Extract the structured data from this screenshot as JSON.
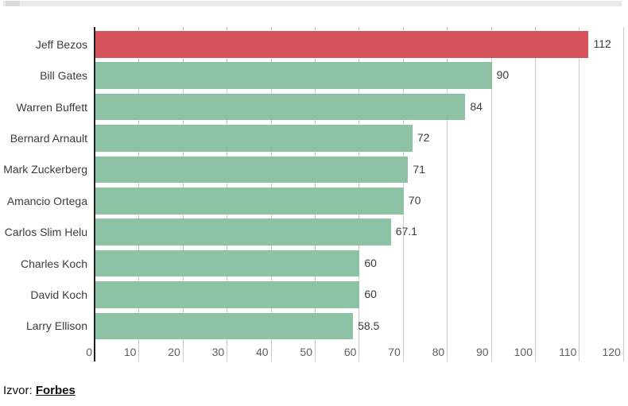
{
  "chart_data": {
    "type": "bar",
    "orientation": "horizontal",
    "title": "",
    "categories": [
      "Jeff Bezos",
      "Bill Gates",
      "Warren Buffett",
      "Bernard Arnault",
      "Mark Zuckerberg",
      "Amancio Ortega",
      "Carlos Slim Helu",
      "Charles Koch",
      "David Koch",
      "Larry Ellison"
    ],
    "values": [
      112,
      90,
      84,
      72,
      71,
      70,
      67.1,
      60,
      60,
      58.5
    ],
    "value_labels": [
      "112",
      "90",
      "84",
      "72",
      "71",
      "70",
      "67.1",
      "60",
      "60",
      "58.5"
    ],
    "highlight_index": 0,
    "colors": {
      "bar_default": "#8dc2a4",
      "bar_highlight": "#d6545b",
      "gridline": "#cccccc",
      "axis_line": "#212121",
      "tick_text": "#606060",
      "label_text": "#3c3c3c"
    },
    "xlim": [
      0,
      120
    ],
    "x_ticks": [
      0,
      10,
      20,
      30,
      40,
      50,
      60,
      70,
      80,
      90,
      100,
      110,
      120
    ],
    "grid": true,
    "legend": "none"
  },
  "footer": {
    "source_label": "Izvor:",
    "source_link": "Forbes"
  }
}
